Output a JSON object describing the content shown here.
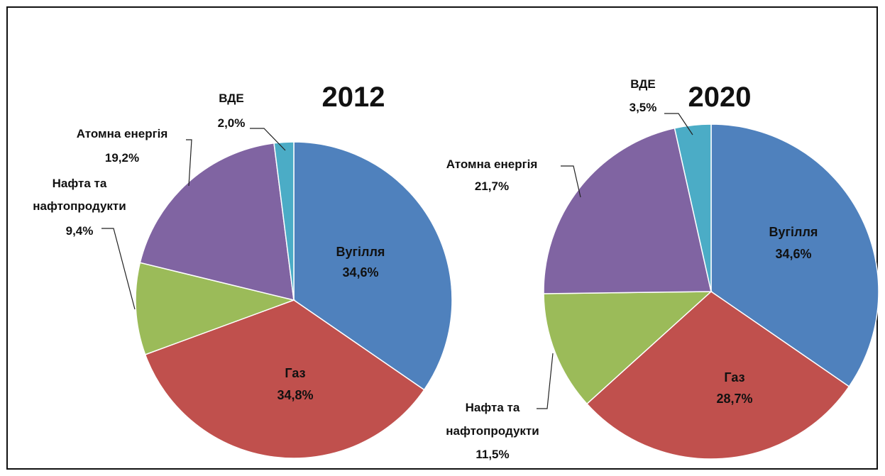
{
  "chart_data": [
    {
      "type": "pie",
      "title": "2012",
      "slices": [
        {
          "label": "Вугілля",
          "value": 34.6,
          "text": "34,6%",
          "color": "#4F81BD"
        },
        {
          "label": "Газ",
          "value": 34.8,
          "text": "34,8%",
          "color": "#C0504D"
        },
        {
          "label_lines": [
            "Нафта та",
            "нафтопродукти"
          ],
          "value": 9.4,
          "text": "9,4%",
          "color": "#9BBB59"
        },
        {
          "label": "Атомна енергія",
          "value": 19.2,
          "text": "19,2%",
          "color": "#8064A2"
        },
        {
          "label": "ВДЕ",
          "value": 2.0,
          "text": "2,0%",
          "color": "#4BACC6"
        }
      ]
    },
    {
      "type": "pie",
      "title": "2020",
      "slices": [
        {
          "label": "Вугілля",
          "value": 34.6,
          "text": "34,6%",
          "color": "#4F81BD"
        },
        {
          "label": "Газ",
          "value": 28.7,
          "text": "28,7%",
          "color": "#C0504D"
        },
        {
          "label_lines": [
            "Нафта та",
            "нафтопродукти"
          ],
          "value": 11.5,
          "text": "11,5%",
          "color": "#9BBB59"
        },
        {
          "label": "Атомна енергія",
          "value": 21.7,
          "text": "21,7%",
          "color": "#8064A2"
        },
        {
          "label": "ВДЕ",
          "value": 3.5,
          "text": "3,5%",
          "color": "#4BACC6"
        }
      ]
    }
  ]
}
